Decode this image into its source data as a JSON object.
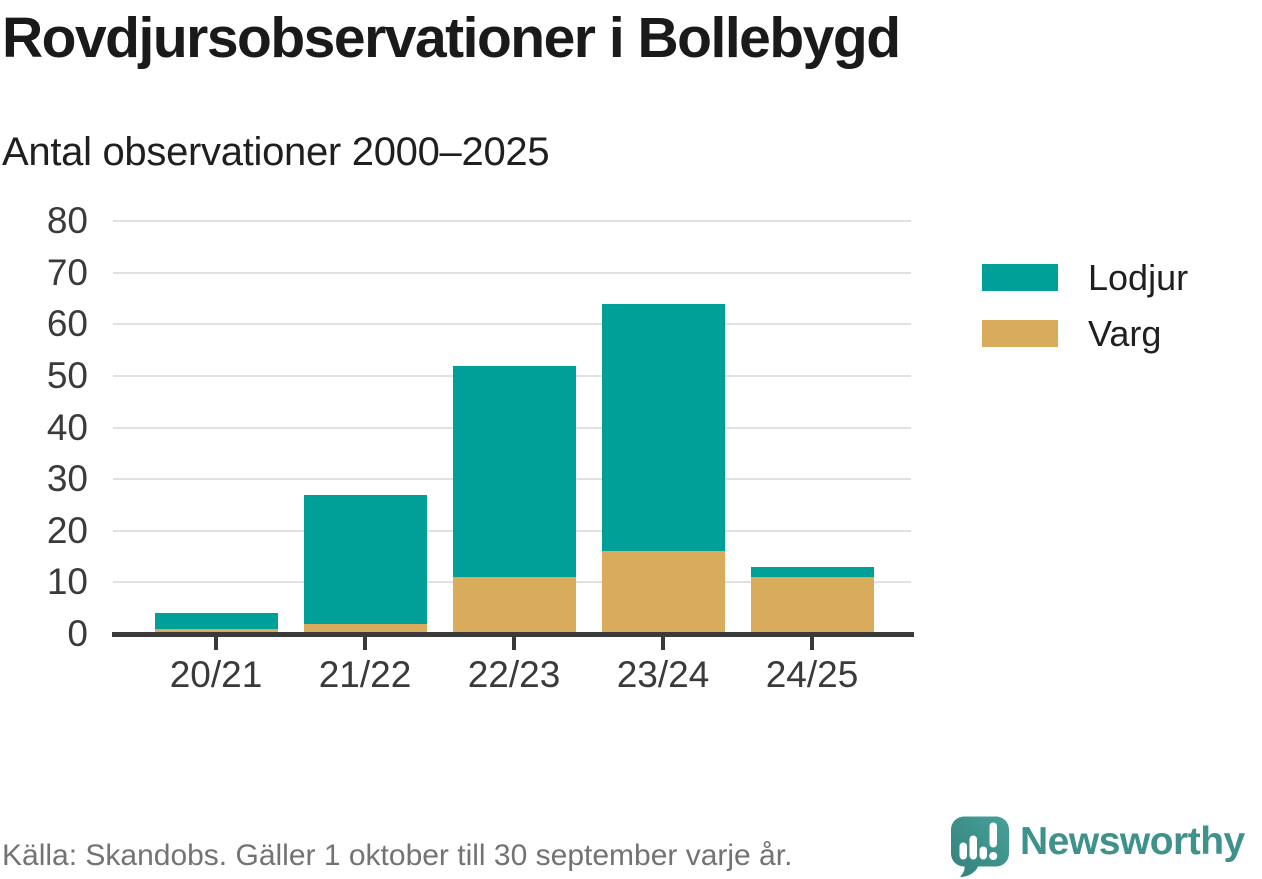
{
  "title": "Rovdjursobservationer i Bollebygd",
  "subtitle": "Antal observationer 2000–2025",
  "footer": {
    "source_note": "Källa: Skandobs. Gäller 1 oktober till 30 september varje år."
  },
  "branding": {
    "logo_text": "Newsworthy",
    "logo_icon": "newsworthy-speech-bubble-chart-icon",
    "brand_color": "#3f928c"
  },
  "colors": {
    "lodjur": "#00a099",
    "varg": "#d9ac5c",
    "axis": "#3a3a3a",
    "gridline": "#e1e1e1",
    "tick_label": "#3a3a3a",
    "footer_text": "#737373"
  },
  "chart_data": {
    "type": "bar",
    "stacked": true,
    "title": "Rovdjursobservationer i Bollebygd",
    "subtitle": "Antal observationer 2000–2025",
    "categories": [
      "20/21",
      "21/22",
      "22/23",
      "23/24",
      "24/25"
    ],
    "series": [
      {
        "name": "Varg",
        "color_key": "varg",
        "values": [
          1,
          2,
          11,
          16,
          11
        ]
      },
      {
        "name": "Lodjur",
        "color_key": "lodjur",
        "values": [
          3,
          25,
          41,
          48,
          2
        ]
      }
    ],
    "totals": [
      4,
      27,
      52,
      64,
      13
    ],
    "xlabel": "",
    "ylabel": "",
    "ylim": [
      0,
      80
    ],
    "y_ticks": [
      0,
      10,
      20,
      30,
      40,
      50,
      60,
      70,
      80
    ],
    "grid": "horizontal",
    "legend_position": "right",
    "legend": [
      {
        "label": "Lodjur",
        "color_key": "lodjur"
      },
      {
        "label": "Varg",
        "color_key": "varg"
      }
    ]
  }
}
